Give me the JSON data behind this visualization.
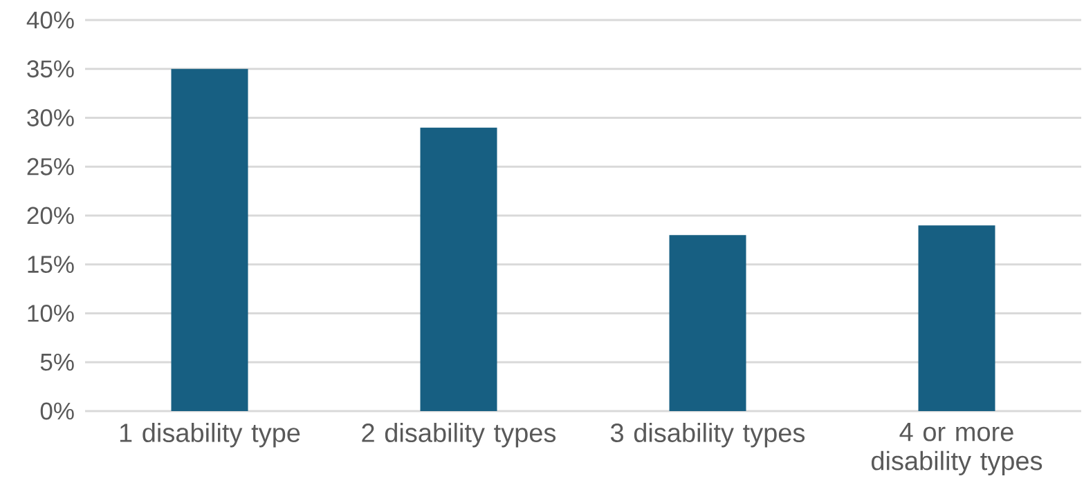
{
  "chart_data": {
    "type": "bar",
    "categories": [
      "1 disability type",
      "2 disability types",
      "3 disability types",
      "4 or more disability types"
    ],
    "values": [
      35,
      29,
      18,
      19
    ],
    "color": "#175f82",
    "ylim": [
      0,
      40
    ],
    "yticks": [
      {
        "value": 0,
        "label": "0%"
      },
      {
        "value": 5,
        "label": "5%"
      },
      {
        "value": 10,
        "label": "10%"
      },
      {
        "value": 15,
        "label": "15%"
      },
      {
        "value": 20,
        "label": "20%"
      },
      {
        "value": 25,
        "label": "25%"
      },
      {
        "value": 30,
        "label": "30%"
      },
      {
        "value": 35,
        "label": "35%"
      },
      {
        "value": 40,
        "label": "40%"
      }
    ],
    "grid": "y"
  }
}
